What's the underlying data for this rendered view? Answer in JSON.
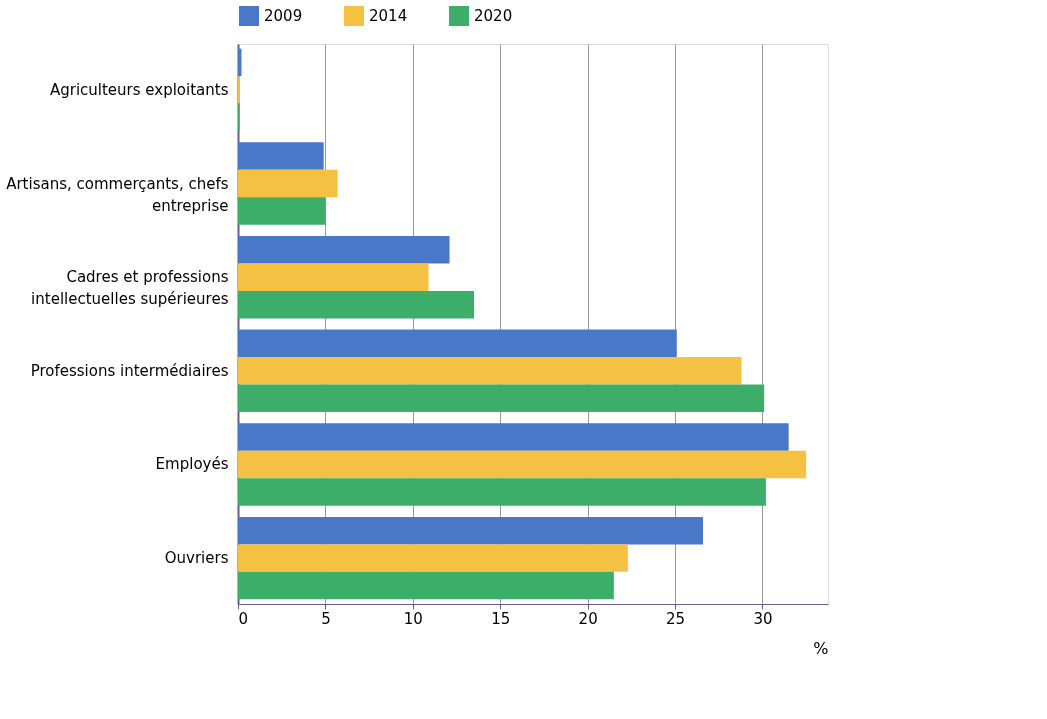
{
  "chart_data": {
    "type": "bar",
    "orientation": "horizontal",
    "xlabel": "%",
    "categories": [
      "Agriculteurs exploitants",
      "Artisans, commerçants, chefs entreprise",
      "Cadres et professions intellectuelles supérieures",
      "Professions intermédiaires",
      "Employés",
      "Ouvriers"
    ],
    "series": [
      {
        "name": "2009",
        "color": "#4a78c8",
        "values": [
          0.2,
          4.9,
          12.1,
          25.1,
          31.5,
          26.6
        ]
      },
      {
        "name": "2014",
        "color": "#f5c142",
        "values": [
          0.1,
          5.7,
          10.9,
          28.8,
          32.5,
          22.3
        ]
      },
      {
        "name": "2020",
        "color": "#3dae6a",
        "values": [
          0.1,
          5.0,
          13.5,
          30.1,
          30.2,
          21.5
        ]
      }
    ],
    "xlim": [
      0,
      33.75
    ],
    "xticks": [
      0,
      5,
      10,
      15,
      20,
      25,
      30
    ],
    "grid": "x",
    "legend": "top"
  }
}
